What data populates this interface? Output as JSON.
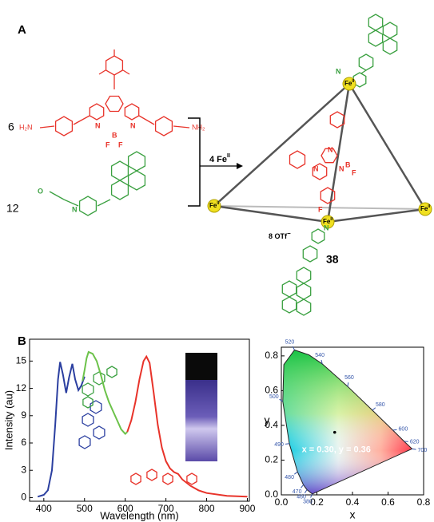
{
  "panel_a": {
    "label": "A",
    "amine": {
      "count": "6",
      "left_group": "H₂N",
      "right_group": "NH₂",
      "atoms": [
        "N",
        "N",
        "B",
        "F",
        "F"
      ]
    },
    "aldehyde": {
      "count": "12",
      "atoms": [
        "O",
        "N"
      ]
    },
    "reagent": {
      "text": "4 Fe",
      "superscript": "II"
    },
    "cage": {
      "metal": "Fe",
      "oxidation": "II",
      "counterion": "8 OTf",
      "charge": "−",
      "compound": "38",
      "atoms": [
        "N",
        "N",
        "N",
        "B",
        "F",
        "F",
        "N",
        "N"
      ]
    }
  },
  "panel_b": {
    "label": "B"
  },
  "chart_data": [
    {
      "type": "line",
      "x_label": "Wavelength (nm)",
      "y_label": "Intensity (au)",
      "xlim": [
        365,
        905
      ],
      "ylim": [
        -0.4,
        17.4
      ],
      "xticks": [
        400,
        500,
        600,
        700,
        800,
        900
      ],
      "yticks": [
        0,
        3,
        6,
        9,
        12,
        15
      ],
      "series": [
        {
          "color": "#2b3fa0",
          "x": [
            385,
            400,
            410,
            420,
            428,
            435,
            440,
            447,
            455,
            462,
            470,
            477,
            485,
            492,
            500
          ],
          "values": [
            0.1,
            0.3,
            0.8,
            3,
            8,
            13,
            14.9,
            13.5,
            11.5,
            13.2,
            14.7,
            13,
            11.8,
            12.3,
            13.3
          ]
        },
        {
          "color": "#6cc24a",
          "x": [
            495,
            500,
            505,
            510,
            520,
            530,
            540,
            550,
            560,
            570,
            580,
            590,
            600,
            605
          ],
          "values": [
            12.8,
            14,
            15.3,
            16,
            15.8,
            15,
            13.5,
            11.8,
            10.5,
            9.5,
            8.5,
            7.5,
            7,
            7.2
          ]
        },
        {
          "color": "#e8332a",
          "x": [
            605,
            615,
            625,
            635,
            645,
            652,
            660,
            670,
            680,
            690,
            700,
            710,
            720,
            730,
            740,
            760,
            780,
            800,
            850,
            900
          ],
          "values": [
            7.2,
            8.5,
            10.5,
            13,
            15,
            15.5,
            14.8,
            11.5,
            8,
            5.5,
            4,
            3.2,
            2.8,
            2.6,
            2,
            1.3,
            0.8,
            0.5,
            0.2,
            0.1
          ]
        }
      ]
    },
    {
      "type": "chromaticity",
      "x_label": "x",
      "y_label": "y",
      "xlim": [
        0,
        0.8
      ],
      "ylim": [
        0,
        0.85
      ],
      "xticks": [
        {
          "value": 0,
          "label": "0.0"
        },
        0.2,
        0.4,
        0.6,
        0.8
      ],
      "yticks": [
        {
          "value": 0,
          "label": "0.0"
        },
        0.2,
        0.4,
        0.6,
        0.8
      ],
      "locus": {
        "x": [
          0.174,
          0.144,
          0.124,
          0.091,
          0.045,
          0.008,
          0.014,
          0.074,
          0.155,
          0.23,
          0.373,
          0.512,
          0.627,
          0.691,
          0.735
        ],
        "values": [
          0.005,
          0.03,
          0.058,
          0.133,
          0.295,
          0.538,
          0.75,
          0.834,
          0.806,
          0.754,
          0.624,
          0.487,
          0.372,
          0.308,
          0.265
        ],
        "wavelengths": [
          "380",
          "460",
          "470",
          "480",
          "490",
          "500",
          null,
          "520",
          null,
          "540",
          "560",
          "580",
          "600",
          "620",
          "700"
        ]
      },
      "point": {
        "x": 0.3,
        "y": 0.36,
        "label": "x = 0.30, y = 0.36"
      }
    }
  ]
}
